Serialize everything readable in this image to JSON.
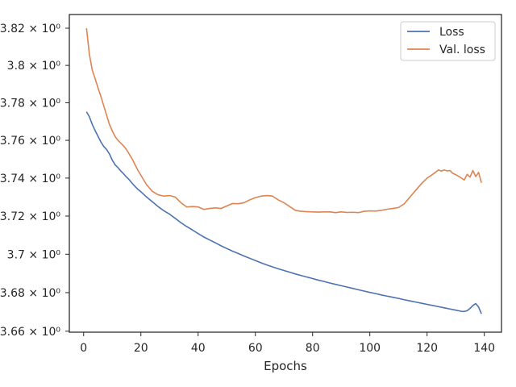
{
  "chart_data": {
    "type": "line",
    "title": "",
    "xlabel": "Epochs",
    "ylabel": "",
    "xlim": [
      -5,
      146
    ],
    "ylim": [
      3.6595,
      3.8274
    ],
    "y_scale": "log",
    "grid": false,
    "legend_placement": "top-right",
    "x_ticks": [
      {
        "value": 0,
        "label": "0"
      },
      {
        "value": 20,
        "label": "20"
      },
      {
        "value": 40,
        "label": "40"
      },
      {
        "value": 60,
        "label": "60"
      },
      {
        "value": 80,
        "label": "80"
      },
      {
        "value": 100,
        "label": "100"
      },
      {
        "value": 120,
        "label": "120"
      },
      {
        "value": 140,
        "label": "140"
      }
    ],
    "y_ticks": [
      {
        "value": 3.66,
        "label": "3.66 × 10⁰"
      },
      {
        "value": 3.68,
        "label": "3.68 × 10⁰"
      },
      {
        "value": 3.7,
        "label": "3.7 × 10⁰"
      },
      {
        "value": 3.72,
        "label": "3.72 × 10⁰"
      },
      {
        "value": 3.74,
        "label": "3.74 × 10⁰"
      },
      {
        "value": 3.76,
        "label": "3.76 × 10⁰"
      },
      {
        "value": 3.78,
        "label": "3.78 × 10⁰"
      },
      {
        "value": 3.8,
        "label": "3.8 × 10⁰"
      },
      {
        "value": 3.82,
        "label": "3.82 × 10⁰"
      }
    ],
    "series": [
      {
        "name": "Loss",
        "color": "#4c72b0",
        "x": [
          1,
          2,
          3,
          4,
          5,
          6,
          7,
          8,
          9,
          10,
          11,
          12,
          13,
          14,
          15,
          16,
          17,
          18,
          19,
          20,
          22,
          24,
          26,
          28,
          30,
          32,
          34,
          36,
          38,
          40,
          42,
          44,
          46,
          48,
          50,
          52,
          54,
          56,
          58,
          60,
          62,
          64,
          66,
          68,
          70,
          72,
          74,
          76,
          78,
          80,
          82,
          84,
          86,
          88,
          90,
          92,
          94,
          96,
          98,
          100,
          102,
          104,
          106,
          108,
          110,
          112,
          114,
          116,
          118,
          120,
          122,
          124,
          126,
          128,
          130,
          132,
          133,
          134,
          135,
          136,
          137,
          138,
          139
        ],
        "y": [
          3.7752,
          3.7725,
          3.7685,
          3.7652,
          3.7622,
          3.7592,
          3.7568,
          3.7552,
          3.7528,
          3.7495,
          3.747,
          3.7455,
          3.7437,
          3.7422,
          3.7405,
          3.739,
          3.7372,
          3.7355,
          3.734,
          3.7328,
          3.73,
          3.7275,
          3.725,
          3.7228,
          3.721,
          3.7188,
          3.7165,
          3.7145,
          3.7127,
          3.7108,
          3.709,
          3.7075,
          3.706,
          3.7044,
          3.703,
          3.7016,
          3.7004,
          3.6991,
          3.6979,
          3.6967,
          3.6955,
          3.6944,
          3.6934,
          3.6924,
          3.6915,
          3.6906,
          3.6897,
          3.6889,
          3.6881,
          3.6873,
          3.6865,
          3.6858,
          3.685,
          3.6843,
          3.6836,
          3.6829,
          3.6822,
          3.6815,
          3.6808,
          3.6801,
          3.6795,
          3.6788,
          3.6782,
          3.6776,
          3.677,
          3.6763,
          3.6757,
          3.6751,
          3.6745,
          3.6739,
          3.6733,
          3.6727,
          3.6721,
          3.6715,
          3.6709,
          3.6703,
          3.6702,
          3.6706,
          3.6718,
          3.6733,
          3.6743,
          3.6725,
          3.669
        ]
      },
      {
        "name": "Val. loss",
        "color": "#dd8452",
        "x": [
          1,
          2,
          3,
          4,
          5,
          6,
          7,
          8,
          9,
          10,
          11,
          12,
          13,
          14,
          15,
          16,
          17,
          18,
          19,
          20,
          22,
          24,
          26,
          28,
          30,
          32,
          34,
          36,
          38,
          40,
          42,
          44,
          46,
          48,
          50,
          52,
          54,
          56,
          58,
          60,
          62,
          64,
          66,
          68,
          70,
          72,
          74,
          76,
          78,
          80,
          82,
          84,
          86,
          88,
          90,
          92,
          94,
          96,
          98,
          100,
          102,
          104,
          106,
          108,
          110,
          112,
          114,
          116,
          118,
          120,
          122,
          124,
          125,
          126,
          127,
          128,
          129,
          130,
          131,
          132,
          133,
          134,
          135,
          136,
          137,
          138,
          139
        ],
        "y": [
          3.82,
          3.806,
          3.7975,
          3.793,
          3.788,
          3.7835,
          3.7785,
          3.7735,
          3.7685,
          3.765,
          3.762,
          3.76,
          3.7585,
          3.757,
          3.755,
          3.7525,
          3.75,
          3.747,
          3.744,
          3.7415,
          3.7365,
          3.733,
          3.7312,
          3.7305,
          3.7308,
          3.73,
          3.727,
          3.7248,
          3.725,
          3.7248,
          3.7235,
          3.724,
          3.7243,
          3.724,
          3.7253,
          3.7266,
          3.7265,
          3.727,
          3.7285,
          3.7297,
          3.7305,
          3.7308,
          3.7305,
          3.7285,
          3.727,
          3.725,
          3.723,
          3.7225,
          3.7223,
          3.7222,
          3.7221,
          3.7222,
          3.7222,
          3.7218,
          3.7222,
          3.7219,
          3.722,
          3.7218,
          3.7225,
          3.7227,
          3.7226,
          3.723,
          3.7236,
          3.724,
          3.7245,
          3.7264,
          3.73,
          3.7335,
          3.737,
          3.74,
          3.742,
          3.7443,
          3.7437,
          3.7443,
          3.7438,
          3.744,
          3.7425,
          3.7418,
          3.741,
          3.74,
          3.739,
          3.742,
          3.7405,
          3.744,
          3.7408,
          3.743,
          3.7375
        ]
      }
    ]
  }
}
